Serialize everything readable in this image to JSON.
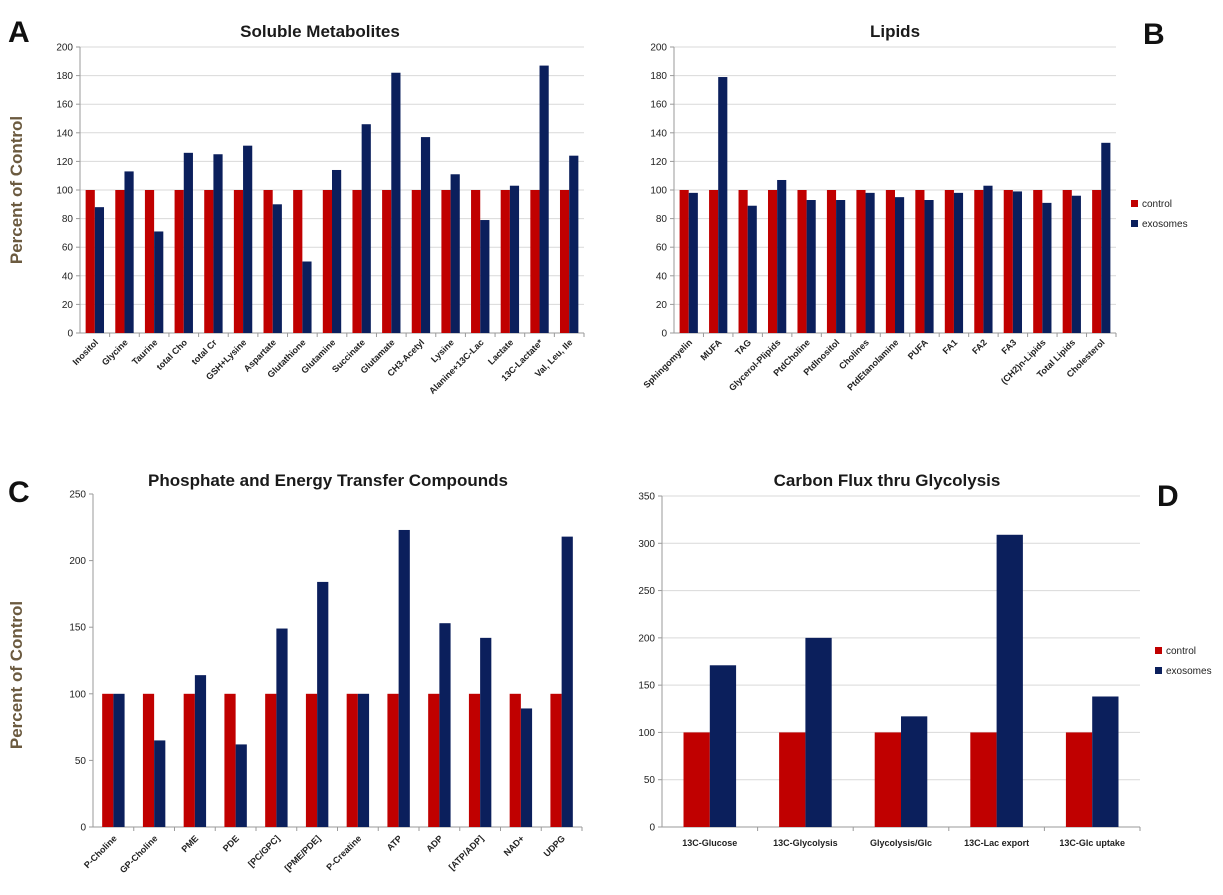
{
  "colors": {
    "control": "#c00000",
    "exosomes": "#0b1f5c",
    "grid": "#d9d9d9",
    "axis": "#9a9a9a"
  },
  "chart_data": [
    {
      "panel": "A",
      "type": "bar",
      "title": "Soluble Metabolites",
      "ylabel": "Percent of Control",
      "ylim": [
        0,
        200
      ],
      "yticks": [
        0,
        20,
        40,
        60,
        80,
        100,
        120,
        140,
        160,
        180,
        200
      ],
      "grid": true,
      "legend": "none",
      "categories": [
        "Inositol",
        "Glycine",
        "Taurine",
        "total Cho",
        "total Cr",
        "GSH+Lysine",
        "Aspartate",
        "Glutathione",
        "Glutamine",
        "Succinate",
        "Glutamate",
        "CH3-Acetyl",
        "Lysine",
        "Alanine+13C-Lac",
        "Lactate",
        "13C-Lactate*",
        "Val, Leu, Ile"
      ],
      "series": [
        {
          "name": "control",
          "values": [
            100,
            100,
            100,
            100,
            100,
            100,
            100,
            100,
            100,
            100,
            100,
            100,
            100,
            100,
            100,
            100,
            100
          ]
        },
        {
          "name": "exosomes",
          "values": [
            88,
            113,
            71,
            126,
            125,
            131,
            90,
            50,
            114,
            146,
            182,
            137,
            111,
            79,
            103,
            187,
            124
          ]
        }
      ]
    },
    {
      "panel": "B",
      "type": "bar",
      "title": "Lipids",
      "ylabel": "",
      "ylim": [
        0,
        200
      ],
      "yticks": [
        0,
        20,
        40,
        60,
        80,
        100,
        120,
        140,
        160,
        180,
        200
      ],
      "grid": true,
      "legend": "right",
      "categories": [
        "Sphingomyelin",
        "MUFA",
        "TAG",
        "Glycerol-Plipids",
        "PtdCholine",
        "PtdInositol",
        "Cholines",
        "PtdEtanolamine",
        "PUFA",
        "FA1",
        "FA2",
        "FA3",
        "(CH2)n-Lipids",
        "Total Lipids",
        "Cholesterol"
      ],
      "series": [
        {
          "name": "control",
          "values": [
            100,
            100,
            100,
            100,
            100,
            100,
            100,
            100,
            100,
            100,
            100,
            100,
            100,
            100,
            100
          ]
        },
        {
          "name": "exosomes",
          "values": [
            98,
            179,
            89,
            107,
            93,
            93,
            98,
            95,
            93,
            98,
            103,
            99,
            91,
            96,
            133
          ]
        }
      ]
    },
    {
      "panel": "C",
      "type": "bar",
      "title": "Phosphate and Energy Transfer Compounds",
      "ylabel": "Percent of Control",
      "ylim": [
        0,
        250
      ],
      "yticks": [
        0,
        50,
        100,
        150,
        200,
        250
      ],
      "grid": false,
      "legend": "none",
      "categories": [
        "P-Choline",
        "GP-Choline",
        "PME",
        "PDE",
        "[PC/GPC]",
        "[PME/PDE]",
        "P-Creatine",
        "ATP",
        "ADP",
        "[ATP/ADP]",
        "NAD+",
        "UDPG"
      ],
      "series": [
        {
          "name": "control",
          "values": [
            100,
            100,
            100,
            100,
            100,
            100,
            100,
            100,
            100,
            100,
            100,
            100
          ]
        },
        {
          "name": "exosomes",
          "values": [
            100,
            65,
            114,
            62,
            149,
            184,
            100,
            223,
            153,
            142,
            89,
            218
          ]
        }
      ]
    },
    {
      "panel": "D",
      "type": "bar",
      "title": "Carbon Flux thru Glycolysis",
      "ylabel": "",
      "ylim": [
        0,
        350
      ],
      "yticks": [
        0,
        50,
        100,
        150,
        200,
        250,
        300,
        350
      ],
      "grid": true,
      "legend": "right",
      "categories": [
        "13C-Glucose",
        "13C-Glycolysis",
        "Glycolysis/Glc",
        "13C-Lac export",
        "13C-Glc uptake"
      ],
      "series": [
        {
          "name": "control",
          "values": [
            100,
            100,
            100,
            100,
            100
          ]
        },
        {
          "name": "exosomes",
          "values": [
            171,
            200,
            117,
            309,
            138
          ]
        }
      ]
    }
  ]
}
